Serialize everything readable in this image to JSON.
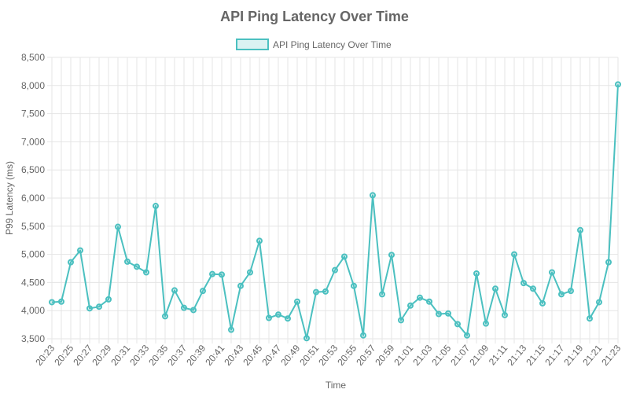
{
  "chart_data": {
    "type": "line",
    "title": "API Ping Latency Over Time",
    "xlabel": "Time",
    "ylabel": "P99 Latency (ms)",
    "ylim": [
      3500,
      8500
    ],
    "yticks": [
      "3,500",
      "4,000",
      "4,500",
      "5,000",
      "5,500",
      "6,000",
      "6,500",
      "7,000",
      "7,500",
      "8,000",
      "8,500"
    ],
    "ytick_values": [
      3500,
      4000,
      4500,
      5000,
      5500,
      6000,
      6500,
      7000,
      7500,
      8000,
      8500
    ],
    "grid": true,
    "legend_position": "top-center",
    "color": "#4bc0c0",
    "x": [
      "20:23",
      "20:24",
      "20:25",
      "20:26",
      "20:27",
      "20:28",
      "20:29",
      "20:30",
      "20:31",
      "20:32",
      "20:33",
      "20:34",
      "20:35",
      "20:36",
      "20:37",
      "20:38",
      "20:39",
      "20:40",
      "20:41",
      "20:42",
      "20:43",
      "20:44",
      "20:45",
      "20:46",
      "20:47",
      "20:48",
      "20:49",
      "20:50",
      "20:51",
      "20:52",
      "20:53",
      "20:54",
      "20:55",
      "20:56",
      "20:57",
      "20:58",
      "20:59",
      "21:00",
      "21:01",
      "21:02",
      "21:03",
      "21:04",
      "21:05",
      "21:06",
      "21:07",
      "21:08",
      "21:09",
      "21:10",
      "21:11",
      "21:12",
      "21:13",
      "21:14",
      "21:15",
      "21:16",
      "21:17",
      "21:18",
      "21:19",
      "21:20",
      "21:21",
      "21:22",
      "21:23"
    ],
    "xtick_labels": [
      "20:23",
      "20:25",
      "20:27",
      "20:29",
      "20:31",
      "20:33",
      "20:35",
      "20:37",
      "20:39",
      "20:41",
      "20:43",
      "20:45",
      "20:47",
      "20:49",
      "20:51",
      "20:53",
      "20:55",
      "20:57",
      "20:59",
      "21:01",
      "21:03",
      "21:05",
      "21:07",
      "21:09",
      "21:11",
      "21:13",
      "21:15",
      "21:17",
      "21:19",
      "21:21",
      "21:23"
    ],
    "series": [
      {
        "name": "API Ping Latency Over Time",
        "values": [
          4150,
          4160,
          4860,
          5070,
          4040,
          4070,
          4200,
          5490,
          4870,
          4780,
          4680,
          5860,
          3900,
          4360,
          4050,
          4010,
          4350,
          4650,
          4640,
          3660,
          4440,
          4680,
          5240,
          3870,
          3930,
          3860,
          4160,
          3510,
          4330,
          4340,
          4720,
          4960,
          4440,
          3560,
          6050,
          4290,
          4990,
          3830,
          4090,
          4230,
          4160,
          3940,
          3950,
          3760,
          3560,
          4660,
          3770,
          4390,
          3920,
          5000,
          4490,
          4390,
          4130,
          4680,
          4290,
          4350,
          5430,
          3860,
          4150,
          4860,
          8020
        ]
      }
    ]
  }
}
